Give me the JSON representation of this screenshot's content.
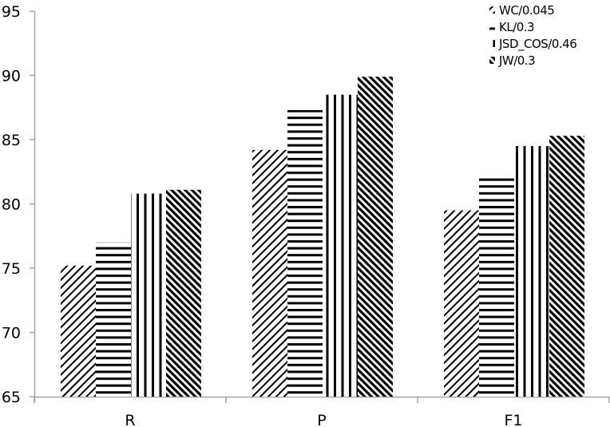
{
  "chart_data": {
    "type": "bar",
    "title": "",
    "xlabel": "",
    "ylabel": "",
    "categories": [
      "R",
      "P",
      "F1"
    ],
    "series": [
      {
        "name": "WC/0.045",
        "pattern": "diag-down-sparse",
        "values": [
          75.2,
          84.2,
          79.5
        ]
      },
      {
        "name": "KL/0.3",
        "pattern": "horizontal",
        "values": [
          77.0,
          87.3,
          82.0
        ]
      },
      {
        "name": "JSD_COS/0.46",
        "pattern": "vertical",
        "values": [
          80.8,
          88.5,
          84.5
        ]
      },
      {
        "name": "JW/0.3",
        "pattern": "diag-up-dense",
        "values": [
          81.1,
          89.9,
          85.3
        ]
      }
    ],
    "ylim": [
      65,
      95
    ],
    "yticks": [
      65,
      70,
      75,
      80,
      85,
      90,
      95
    ],
    "grid": false,
    "legend_position": "top-right"
  },
  "colors": {
    "axis": "#a6a6a6",
    "pattern": "#000000",
    "background": "#ffffff"
  }
}
